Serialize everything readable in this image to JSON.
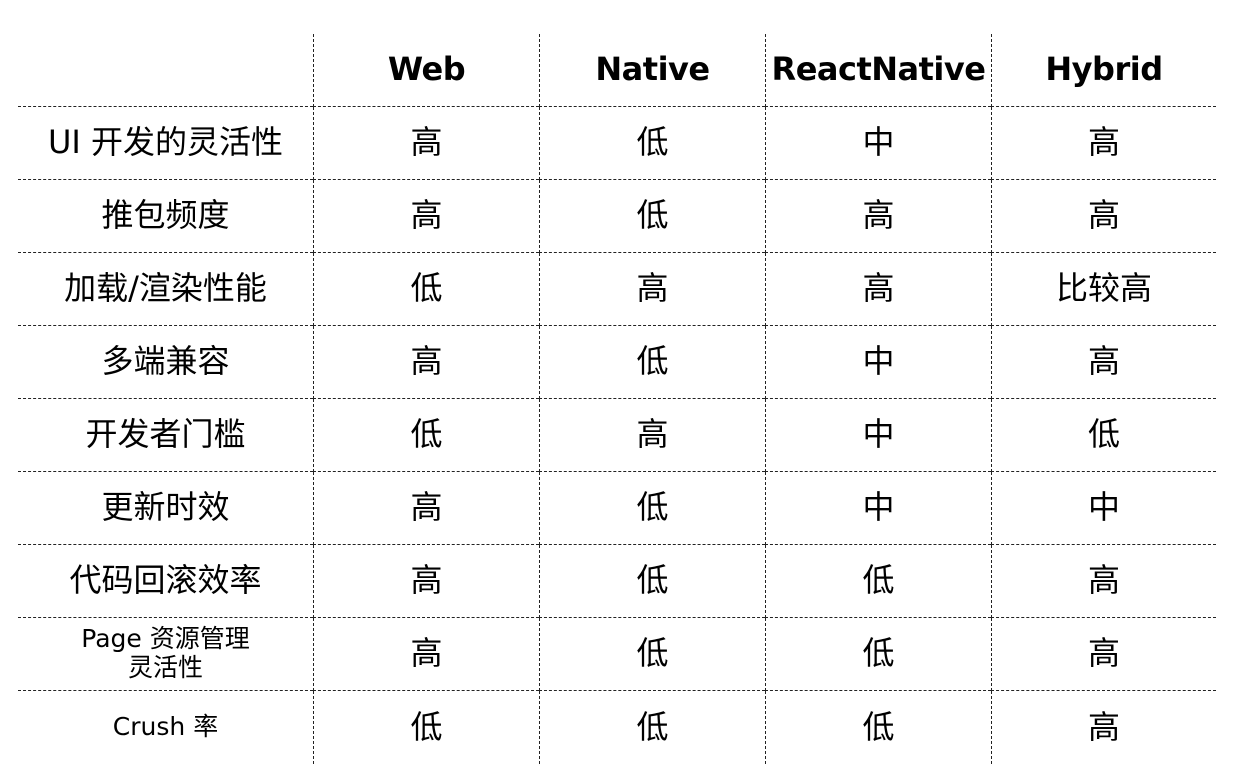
{
  "columns": [
    "Web",
    "Native",
    "ReactNative",
    "Hybrid"
  ],
  "rows": [
    {
      "label": "UI 开发的灵活性",
      "values": [
        "高",
        "低",
        "中",
        "高"
      ]
    },
    {
      "label": "推包频度",
      "values": [
        "高",
        "低",
        "高",
        "高"
      ]
    },
    {
      "label": "加载/渲染性能",
      "values": [
        "低",
        "高",
        "高",
        "比较高"
      ]
    },
    {
      "label": "多端兼容",
      "values": [
        "高",
        "低",
        "中",
        "高"
      ]
    },
    {
      "label": "开发者门槛",
      "values": [
        "低",
        "高",
        "中",
        "低"
      ]
    },
    {
      "label": "更新时效",
      "values": [
        "高",
        "低",
        "中",
        "中"
      ]
    },
    {
      "label": "代码回滚效率",
      "values": [
        "高",
        "低",
        "低",
        "高"
      ]
    },
    {
      "label_line1": "Page 资源管理",
      "label_line2": "灵活性",
      "values": [
        "高",
        "低",
        "低",
        "高"
      ]
    },
    {
      "label": "Crush 率",
      "values": [
        "低",
        "低",
        "低",
        "高"
      ]
    }
  ]
}
